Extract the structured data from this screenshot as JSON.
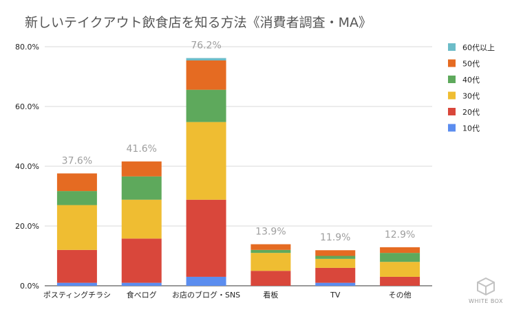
{
  "chart_data": {
    "type": "bar",
    "stacked": true,
    "title": "新しいテイクアウト飲食店を知る方法《消費者調査・MA》",
    "xlabel": "",
    "ylabel": "",
    "ylim": [
      0,
      80
    ],
    "yticks": [
      "0.0%",
      "20.0%",
      "40.0%",
      "60.0%",
      "80.0%"
    ],
    "grid": true,
    "legend_position": "right",
    "categories": [
      "ポスティングチラシ",
      "食べログ",
      "お店のブログ・SNS",
      "看板",
      "TV",
      "その他"
    ],
    "totals_labels": [
      "37.6%",
      "41.6%",
      "76.2%",
      "13.9%",
      "11.9%",
      "12.9%"
    ],
    "series": [
      {
        "name": "10代",
        "color": "#5b8def",
        "values": [
          1.0,
          1.0,
          3.0,
          0.0,
          1.0,
          0.0
        ]
      },
      {
        "name": "20代",
        "color": "#d9473b",
        "values": [
          11.0,
          14.8,
          25.8,
          5.0,
          5.0,
          3.0
        ]
      },
      {
        "name": "30代",
        "color": "#efbd32",
        "values": [
          15.0,
          13.0,
          26.0,
          6.0,
          3.0,
          5.0
        ]
      },
      {
        "name": "40代",
        "color": "#5ea95c",
        "values": [
          4.7,
          7.8,
          10.8,
          1.0,
          1.0,
          3.0
        ]
      },
      {
        "name": "50代",
        "color": "#e56b22",
        "values": [
          5.9,
          5.0,
          9.8,
          1.9,
          1.9,
          1.9
        ]
      },
      {
        "name": "60代以上",
        "color": "#6cbcc8",
        "values": [
          0.0,
          0.0,
          0.8,
          0.0,
          0.0,
          0.0
        ]
      }
    ],
    "legend_order": [
      "60代以上",
      "50代",
      "40代",
      "30代",
      "20代",
      "10代"
    ]
  },
  "logo": {
    "text": "WHITE BOX"
  }
}
